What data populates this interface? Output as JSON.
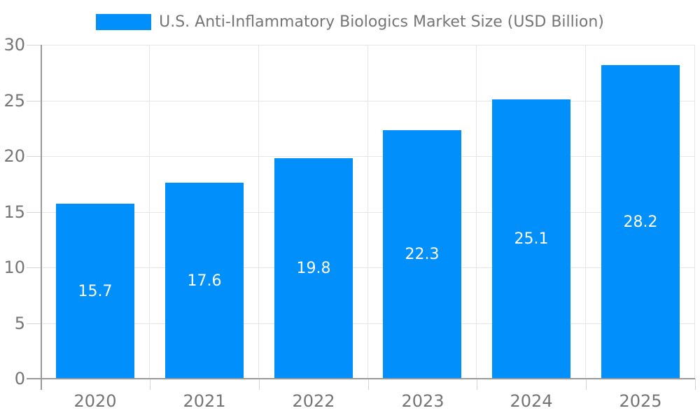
{
  "chart_data": {
    "type": "bar",
    "title": "U.S. Anti-Inflammatory Biologics Market Size (USD Billion)",
    "legend_position": "top-center",
    "categories": [
      "2020",
      "2021",
      "2022",
      "2023",
      "2024",
      "2025"
    ],
    "values": [
      15.7,
      17.6,
      19.8,
      22.3,
      25.1,
      28.2
    ],
    "value_labels": [
      "15.7",
      "17.6",
      "19.8",
      "22.3",
      "25.1",
      "28.2"
    ],
    "xlabel": "",
    "ylabel": "",
    "ylim": [
      0,
      30
    ],
    "yticks": [
      "0",
      "5",
      "10",
      "15",
      "20",
      "25",
      "30"
    ],
    "grid": "on",
    "colors": {
      "bar": "#008FFB",
      "bar_value_text": "#ffffff",
      "axis_text": "#757575",
      "legend_text": "#757575",
      "gridline": "#e6e6e6",
      "tick": "#d6d6d6",
      "axis_line": "#999999",
      "background": "#ffffff"
    }
  }
}
